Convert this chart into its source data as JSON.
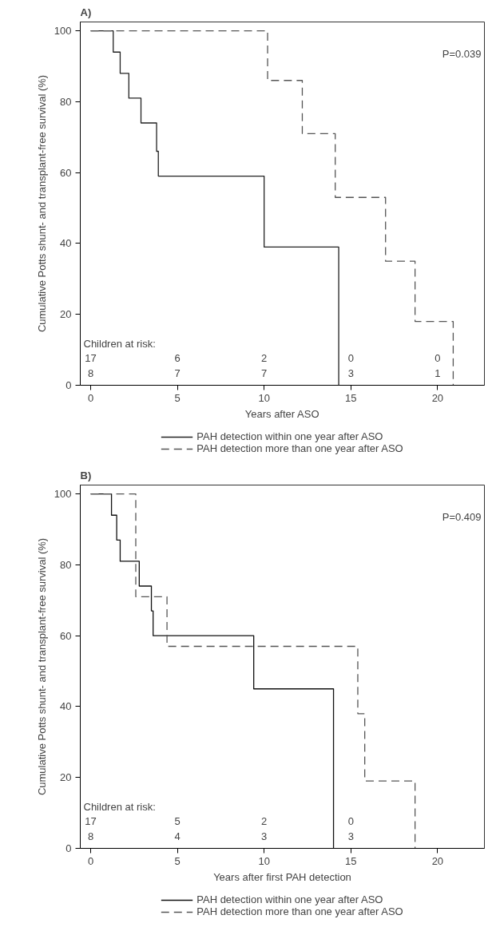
{
  "chart_data": [
    {
      "type": "step",
      "title": "A)",
      "xlabel": "Years after ASO",
      "ylabel": "Cumulative Potts shunt- and transplant-free survival (%)",
      "xlim": [
        -0.6,
        22.7
      ],
      "ylim": [
        0,
        102.5
      ],
      "xticks": [
        0,
        5,
        10,
        15,
        20
      ],
      "yticks": [
        0,
        20,
        40,
        60,
        80,
        100
      ],
      "legend": "bottom",
      "series": [
        {
          "name": "PAH detection within one year after ASO",
          "color": "#222222",
          "line_style": "solid",
          "x": [
            0,
            1.3,
            1.7,
            2.2,
            2.9,
            3.8,
            3.9,
            10,
            14.3
          ],
          "values": [
            100,
            94,
            88,
            81,
            74,
            66,
            59,
            39,
            0
          ]
        },
        {
          "name": "PAH detection more than one year after ASO",
          "color": "#555555",
          "line_style": "dashed",
          "x": [
            0,
            10.2,
            12.2,
            14.1,
            17,
            18.7,
            20.9
          ],
          "values": [
            100,
            86,
            71,
            53,
            35,
            18,
            0
          ]
        }
      ],
      "annotations": [
        "P=0.039",
        "Children at risk:",
        "17",
        "6",
        "2",
        "0",
        "0",
        "8",
        "7",
        "7",
        "3",
        "1"
      ]
    },
    {
      "type": "step",
      "title": "B)",
      "xlabel": "Years after first PAH detection",
      "ylabel": "Cumulative Potts shunt- and transplant-free survival (%)",
      "xlim": [
        -0.6,
        22.7
      ],
      "ylim": [
        0,
        102.5
      ],
      "xticks": [
        0,
        5,
        10,
        15,
        20
      ],
      "yticks": [
        0,
        20,
        40,
        60,
        80,
        100
      ],
      "legend": "bottom",
      "series": [
        {
          "name": "PAH detection within one year after ASO",
          "color": "#111111",
          "line_style": "solid",
          "x": [
            0,
            1.2,
            1.5,
            1.7,
            2.8,
            3.5,
            3.6,
            9.4,
            14
          ],
          "values": [
            100,
            94,
            87,
            81,
            74,
            67,
            60,
            45,
            0
          ]
        },
        {
          "name": "PAH detection more than one year after ASO",
          "color": "#555555",
          "line_style": "dashed",
          "x": [
            0,
            2.6,
            4.4,
            15.4,
            15.8,
            18.7
          ],
          "values": [
            100,
            71,
            57,
            38,
            19,
            0
          ]
        }
      ],
      "annotations": [
        "P=0.409",
        "Children at risk:",
        "17",
        "5",
        "2",
        "0",
        "8",
        "4",
        "3",
        "3"
      ]
    }
  ]
}
